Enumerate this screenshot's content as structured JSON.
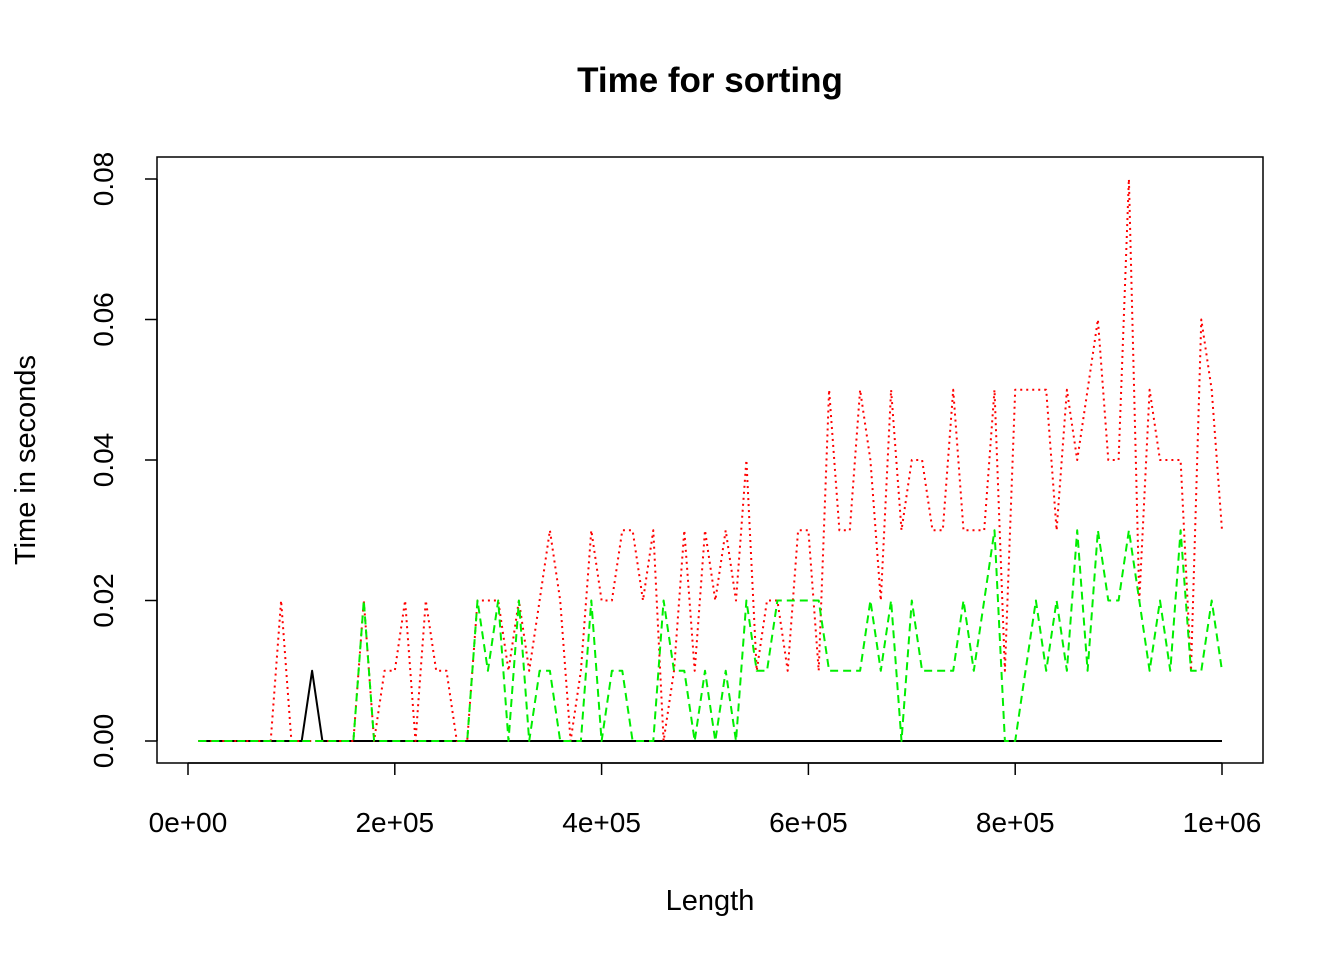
{
  "chart_data": {
    "type": "line",
    "title": "Time for sorting",
    "xlabel": "Length",
    "ylabel": "Time in seconds",
    "xlim": [
      0,
      1000000
    ],
    "ylim": [
      0,
      0.08
    ],
    "x_ticks": [
      0,
      200000,
      400000,
      600000,
      800000,
      1000000
    ],
    "x_tick_labels": [
      "0e+00",
      "2e+05",
      "4e+05",
      "6e+05",
      "8e+05",
      "1e+06"
    ],
    "y_ticks": [
      0,
      0.02,
      0.04,
      0.06,
      0.08
    ],
    "y_tick_labels": [
      "0.00",
      "0.02",
      "0.04",
      "0.06",
      "0.08"
    ],
    "grid": false,
    "legend": "none",
    "x": [
      10000,
      20000,
      30000,
      40000,
      50000,
      60000,
      70000,
      80000,
      90000,
      100000,
      110000,
      120000,
      130000,
      140000,
      150000,
      160000,
      170000,
      180000,
      190000,
      200000,
      210000,
      220000,
      230000,
      240000,
      250000,
      260000,
      270000,
      280000,
      290000,
      300000,
      310000,
      320000,
      330000,
      340000,
      350000,
      360000,
      370000,
      380000,
      390000,
      400000,
      410000,
      420000,
      430000,
      440000,
      450000,
      460000,
      470000,
      480000,
      490000,
      500000,
      510000,
      520000,
      530000,
      540000,
      550000,
      560000,
      570000,
      580000,
      590000,
      600000,
      610000,
      620000,
      630000,
      640000,
      650000,
      660000,
      670000,
      680000,
      690000,
      700000,
      710000,
      720000,
      730000,
      740000,
      750000,
      760000,
      770000,
      780000,
      790000,
      800000,
      810000,
      820000,
      830000,
      840000,
      850000,
      860000,
      870000,
      880000,
      890000,
      900000,
      910000,
      920000,
      930000,
      940000,
      950000,
      960000,
      970000,
      980000,
      990000,
      1000000
    ],
    "series": [
      {
        "color": "#000000",
        "dash": "solid",
        "values": [
          0,
          0,
          0,
          0,
          0,
          0,
          0,
          0,
          0,
          0,
          0,
          0.01,
          0,
          0,
          0,
          0,
          0,
          0,
          0,
          0,
          0,
          0,
          0,
          0,
          0,
          0,
          0,
          0,
          0,
          0,
          0,
          0,
          0,
          0,
          0,
          0,
          0,
          0,
          0,
          0,
          0,
          0,
          0,
          0,
          0,
          0,
          0,
          0,
          0,
          0,
          0,
          0,
          0,
          0,
          0,
          0,
          0,
          0,
          0,
          0,
          0,
          0,
          0,
          0,
          0,
          0,
          0,
          0,
          0,
          0,
          0,
          0,
          0,
          0,
          0,
          0,
          0,
          0,
          0,
          0,
          0,
          0,
          0,
          0,
          0,
          0,
          0,
          0,
          0,
          0,
          0,
          0,
          0,
          0,
          0,
          0,
          0,
          0,
          0,
          0
        ]
      },
      {
        "color": "#ff0000",
        "dash": "dotted",
        "values": [
          0,
          0,
          0,
          0,
          0,
          0,
          0,
          0,
          0.02,
          0,
          0,
          0,
          0,
          0,
          0,
          0,
          0.02,
          0,
          0.01,
          0.01,
          0.02,
          0,
          0.02,
          0.01,
          0.01,
          0,
          0,
          0.02,
          0.02,
          0.02,
          0.01,
          0.02,
          0.01,
          0.02,
          0.03,
          0.02,
          0,
          0.01,
          0.03,
          0.02,
          0.02,
          0.03,
          0.03,
          0.02,
          0.03,
          0,
          0.01,
          0.03,
          0.01,
          0.03,
          0.02,
          0.03,
          0.02,
          0.04,
          0.01,
          0.02,
          0.02,
          0.01,
          0.03,
          0.03,
          0.01,
          0.05,
          0.03,
          0.03,
          0.05,
          0.04,
          0.02,
          0.05,
          0.03,
          0.04,
          0.04,
          0.03,
          0.03,
          0.05,
          0.03,
          0.03,
          0.03,
          0.05,
          0.01,
          0.05,
          0.05,
          0.05,
          0.05,
          0.03,
          0.05,
          0.04,
          0.05,
          0.06,
          0.04,
          0.04,
          0.08,
          0.02,
          0.05,
          0.04,
          0.04,
          0.04,
          0.01,
          0.06,
          0.05,
          0.03
        ]
      },
      {
        "color": "#00ee00",
        "dash": "dashed",
        "values": [
          0,
          0,
          0,
          0,
          0,
          0,
          0,
          0,
          0,
          0,
          0,
          0,
          0,
          0,
          0,
          0,
          0.02,
          0,
          0,
          0,
          0,
          0,
          0,
          0,
          0,
          0,
          0,
          0.02,
          0.01,
          0.02,
          0,
          0.02,
          0,
          0.01,
          0.01,
          0,
          0,
          0,
          0.02,
          0,
          0.01,
          0.01,
          0,
          0,
          0,
          0.02,
          0.01,
          0.01,
          0,
          0.01,
          0,
          0.01,
          0,
          0.02,
          0.01,
          0.01,
          0.02,
          0.02,
          0.02,
          0.02,
          0.02,
          0.01,
          0.01,
          0.01,
          0.01,
          0.02,
          0.01,
          0.02,
          0,
          0.02,
          0.01,
          0.01,
          0.01,
          0.01,
          0.02,
          0.01,
          0.02,
          0.03,
          0,
          0,
          0.01,
          0.02,
          0.01,
          0.02,
          0.01,
          0.03,
          0.01,
          0.03,
          0.02,
          0.02,
          0.03,
          0.02,
          0.01,
          0.02,
          0.01,
          0.03,
          0.01,
          0.01,
          0.02,
          0.01
        ]
      }
    ]
  }
}
